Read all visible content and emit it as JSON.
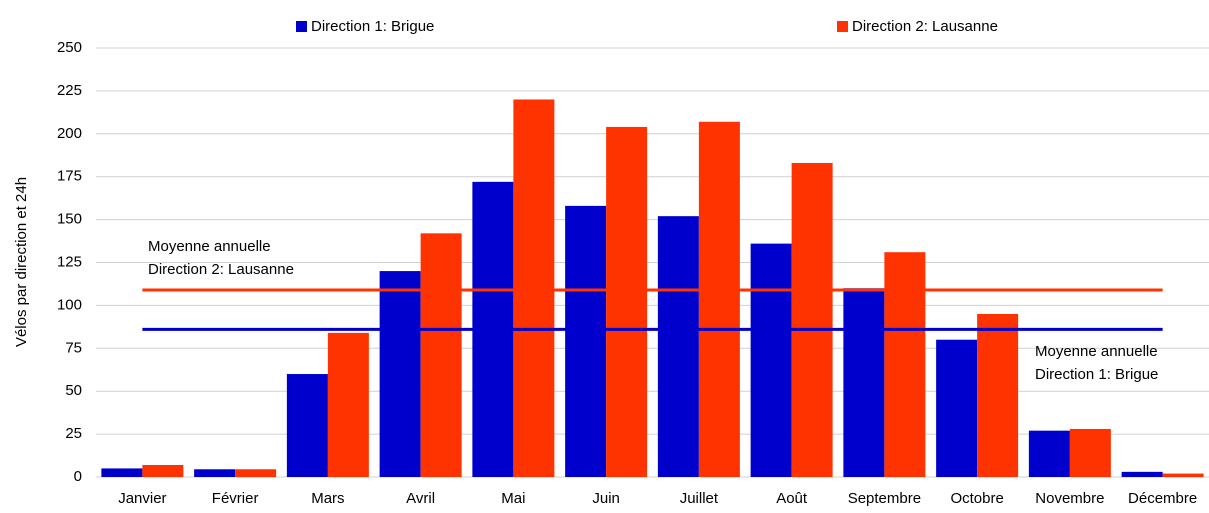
{
  "chart_data": {
    "type": "bar",
    "y_label": "Vélos par direction et 24h",
    "categories": [
      "Janvier",
      "Février",
      "Mars",
      "Avril",
      "Mai",
      "Juin",
      "Juillet",
      "Août",
      "Septembre",
      "Octobre",
      "Novembre",
      "Décembre"
    ],
    "series": [
      {
        "name": "Direction 1: Brigue",
        "color": "#0000cc",
        "values": [
          5,
          4.5,
          60,
          120,
          172,
          158,
          152,
          136,
          110,
          80,
          27,
          3
        ]
      },
      {
        "name": "Direction 2: Lausanne",
        "color": "#ff3300",
        "values": [
          7,
          4.5,
          84,
          142,
          220,
          204,
          207,
          183,
          131,
          95,
          28,
          2
        ]
      }
    ],
    "average_lines": [
      {
        "value": 109,
        "color": "#ff3300",
        "annotation": [
          "Moyenne annuelle",
          "Direction 2: Lausanne"
        ]
      },
      {
        "value": 86,
        "color": "#0000cc",
        "annotation": [
          "Moyenne annuelle",
          "Direction 1: Brigue"
        ]
      }
    ],
    "ylim": [
      0,
      250
    ],
    "yticks": [
      0,
      25,
      50,
      75,
      100,
      125,
      150,
      175,
      200,
      225,
      250
    ],
    "grid": true,
    "legend": "top"
  }
}
